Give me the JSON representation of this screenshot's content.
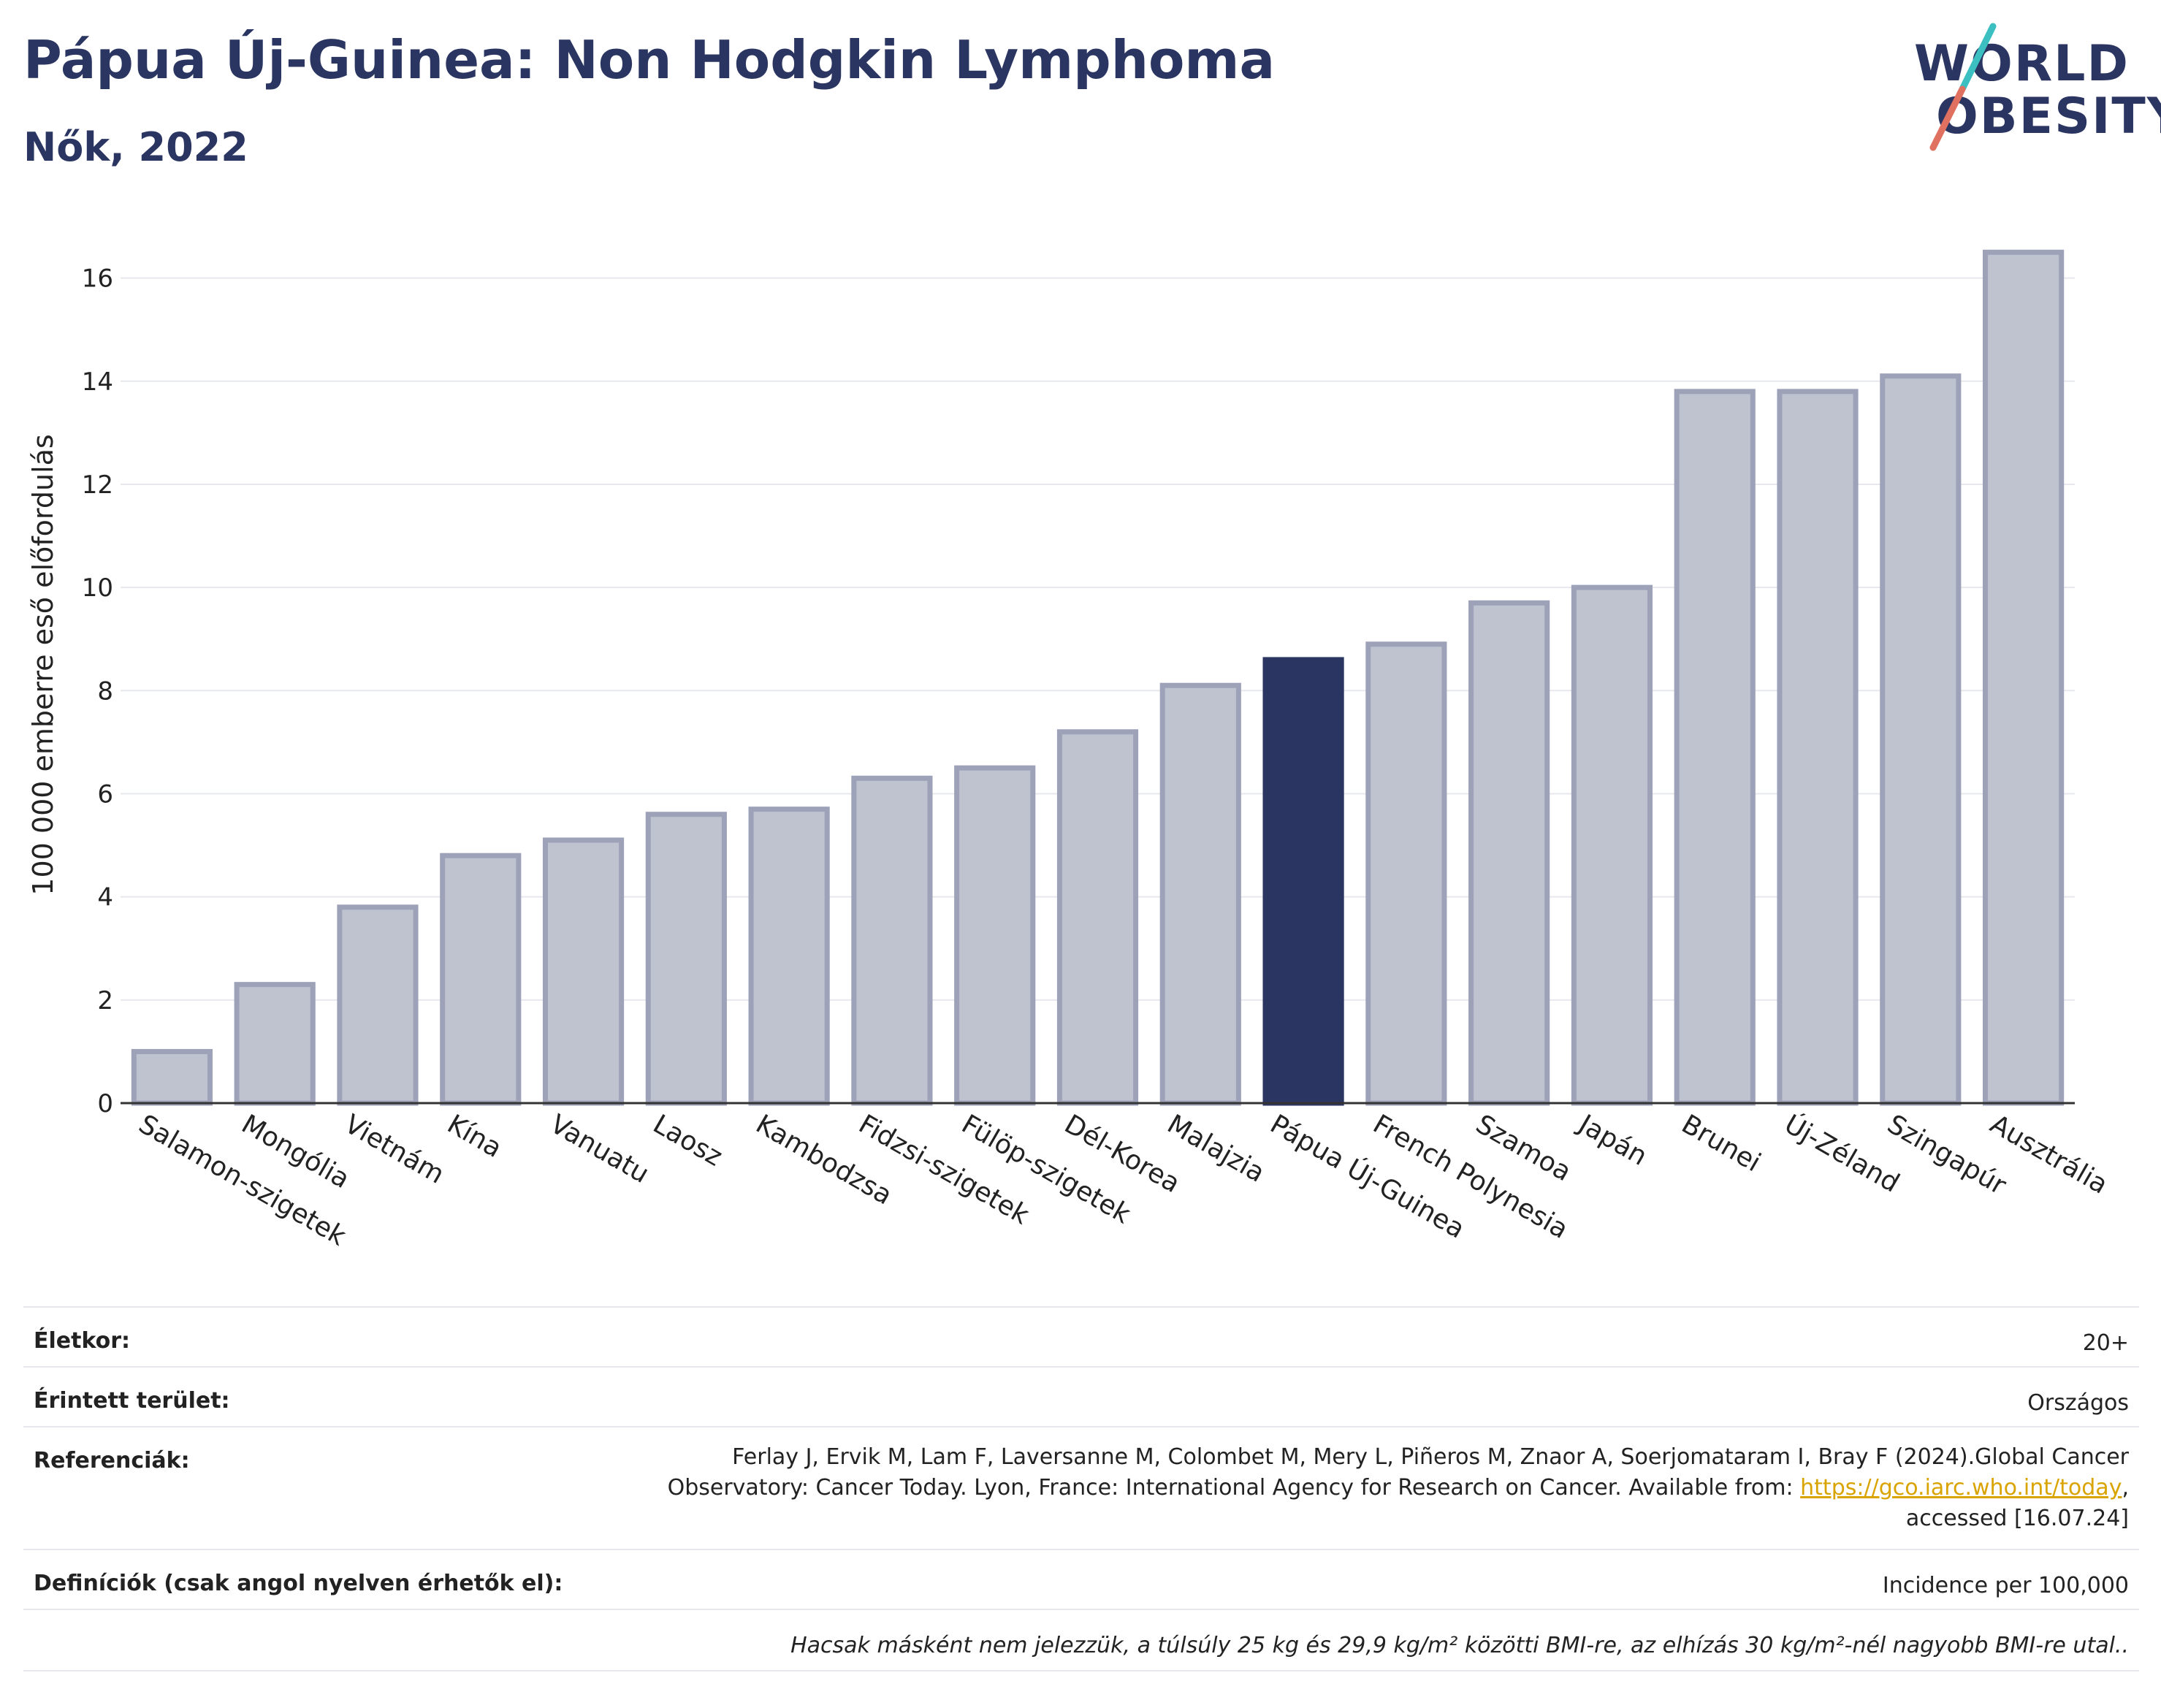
{
  "header": {
    "title": "Pápua Új-Guinea: Non Hodgkin Lymphoma",
    "subtitle": "Nők, 2022"
  },
  "logo": {
    "line1": "WORLD",
    "line2": "OBESITY",
    "colors": {
      "text": "#2b3561",
      "slash_top": "#3cbfc0",
      "slash_bottom": "#e07060"
    }
  },
  "chart_data": {
    "type": "bar",
    "ylabel": "100 000 emberre eső előfordulás",
    "xlabel": "",
    "ylim": [
      0,
      17
    ],
    "yticks": [
      0,
      2,
      4,
      6,
      8,
      10,
      12,
      14,
      16
    ],
    "grid": true,
    "categories": [
      "Salamon-szigetek",
      "Mongólia",
      "Vietnám",
      "Kína",
      "Vanuatu",
      "Laosz",
      "Kambodzsa",
      "Fidzsi-szigetek",
      "Fülöp-szigetek",
      "Dél-Korea",
      "Malajzia",
      "Pápua Új-Guinea",
      "French Polynesia",
      "Szamoa",
      "Japán",
      "Brunei",
      "Új-Zéland",
      "Szingapúr",
      "Ausztrália"
    ],
    "values": [
      1.0,
      2.3,
      3.8,
      4.8,
      5.1,
      5.6,
      5.7,
      6.3,
      6.5,
      7.2,
      8.1,
      8.6,
      8.9,
      9.7,
      10.0,
      13.8,
      13.8,
      14.1,
      16.5
    ],
    "highlight": "Pápua Új-Guinea",
    "colors": {
      "bar": "#bfc2cf",
      "bar_border": "#9da2b8",
      "highlight": "#2b3561",
      "grid": "#e6e8ee",
      "axis": "#333333"
    }
  },
  "meta": {
    "age_label": "Életkor:",
    "age_value": "20+",
    "area_label": "Érintett terület:",
    "area_value": "Országos",
    "ref_label": "Referenciák:",
    "ref_line1": "Ferlay J, Ervik M, Lam F, Laversanne M, Colombet M, Mery L, Piñeros M, Znaor A, Soerjomataram I, Bray F (2024).Global Cancer",
    "ref_line2a": "Observatory: Cancer Today. Lyon, France: International Agency for Research on Cancer. Available from: ",
    "ref_link": "https://gco.iarc.who.int/today",
    "ref_line2b": ",",
    "ref_line3": "accessed [16.07.24]",
    "def_label": "Definíciók (csak angol nyelven érhetők el):",
    "def_value": "Incidence per 100,000",
    "note": "Hacsak másként nem jelezzük, a túlsúly 25 kg és 29,9 kg/m² közötti BMI-re, az elhízás 30 kg/m²-nél nagyobb BMI-re utal.."
  }
}
